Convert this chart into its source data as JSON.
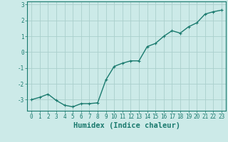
{
  "title": "",
  "xlabel": "Humidex (Indice chaleur)",
  "ylabel": "",
  "x": [
    0,
    1,
    2,
    3,
    4,
    5,
    6,
    7,
    8,
    9,
    10,
    11,
    12,
    13,
    14,
    15,
    16,
    17,
    18,
    19,
    20,
    21,
    22,
    23
  ],
  "y": [
    -3.0,
    -2.85,
    -2.65,
    -3.05,
    -3.35,
    -3.45,
    -3.25,
    -3.25,
    -3.2,
    -1.75,
    -0.9,
    -0.7,
    -0.55,
    -0.55,
    0.35,
    0.55,
    1.0,
    1.35,
    1.2,
    1.6,
    1.85,
    2.4,
    2.55,
    2.65
  ],
  "line_color": "#1a7a6e",
  "marker": "+",
  "bg_color": "#cceae8",
  "grid_color": "#aacfcc",
  "ylim": [
    -3.7,
    3.2
  ],
  "yticks": [
    -3,
    -2,
    -1,
    0,
    1,
    2,
    3
  ],
  "xlim": [
    -0.5,
    23.5
  ],
  "xticks": [
    0,
    1,
    2,
    3,
    4,
    5,
    6,
    7,
    8,
    9,
    10,
    11,
    12,
    13,
    14,
    15,
    16,
    17,
    18,
    19,
    20,
    21,
    22,
    23
  ],
  "tick_fontsize": 5.5,
  "xlabel_fontsize": 7.5,
  "axis_color": "#1a7a6e",
  "spine_color": "#1a7a6e",
  "linewidth": 1.0,
  "markersize": 3.5
}
